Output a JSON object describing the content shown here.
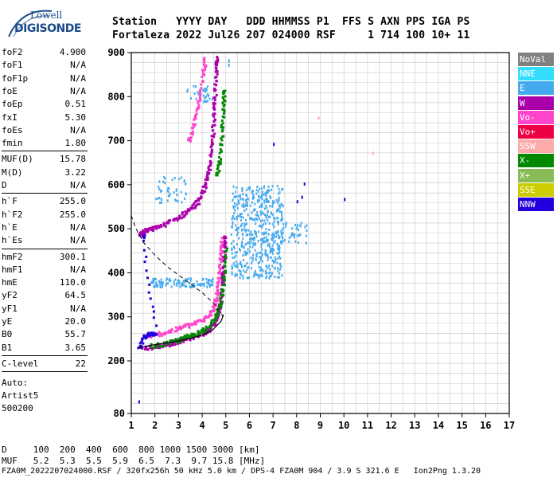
{
  "logo": {
    "line1": "Lowell",
    "line2": "DIGISONDE"
  },
  "header": {
    "line1": "Station   YYYY DAY   DDD HHMMSS P1  FFS S AXN PPS IGA PS",
    "line2": "Fortaleza 2022 Jul26 207 024000 RSF     1 714 100 10+ 11"
  },
  "params": {
    "group1": [
      {
        "label": "foF2",
        "value": "4.900"
      },
      {
        "label": "foF1",
        "value": "N/A"
      },
      {
        "label": "foF1p",
        "value": "N/A"
      },
      {
        "label": "foE",
        "value": "N/A"
      },
      {
        "label": "foEp",
        "value": "0.51"
      },
      {
        "label": "fxI",
        "value": "5.30"
      },
      {
        "label": "foEs",
        "value": "N/A"
      },
      {
        "label": "fmin",
        "value": "1.80"
      }
    ],
    "group2": [
      {
        "label": "MUF(D)",
        "value": "15.78"
      },
      {
        "label": "M(D)",
        "value": "3.22"
      },
      {
        "label": "D",
        "value": "N/A"
      }
    ],
    "group3": [
      {
        "label": "h`F",
        "value": "255.0"
      },
      {
        "label": "h`F2",
        "value": "255.0"
      },
      {
        "label": "h`E",
        "value": "N/A"
      },
      {
        "label": "h`Es",
        "value": "N/A"
      }
    ],
    "group4": [
      {
        "label": "hmF2",
        "value": "300.1"
      },
      {
        "label": "hmF1",
        "value": "N/A"
      },
      {
        "label": "hmE",
        "value": "110.0"
      },
      {
        "label": "yF2",
        "value": "64.5"
      },
      {
        "label": "yF1",
        "value": "N/A"
      },
      {
        "label": "yE",
        "value": "20.0"
      },
      {
        "label": "B0",
        "value": "55.7"
      },
      {
        "label": "B1",
        "value": "3.65"
      }
    ],
    "clevel": {
      "label": "C-level",
      "value": "22"
    },
    "auto": [
      "Auto:",
      "Artist5",
      "500200"
    ]
  },
  "legend": [
    {
      "label": "NoVal",
      "color": "#808080"
    },
    {
      "label": "NNE",
      "color": "#33ddff"
    },
    {
      "label": "E",
      "color": "#44aaee"
    },
    {
      "label": "W",
      "color": "#aa00aa"
    },
    {
      "label": "Vo-",
      "color": "#ff44cc"
    },
    {
      "label": "Vo+",
      "color": "#ee0044"
    },
    {
      "label": "SSW",
      "color": "#ffaaaa"
    },
    {
      "label": "X-",
      "color": "#008800"
    },
    {
      "label": "X+",
      "color": "#88bb55"
    },
    {
      "label": "SSE",
      "color": "#cccc00"
    },
    {
      "label": "NNW",
      "color": "#2200dd"
    }
  ],
  "footer": {
    "line1": "D     100  200  400  600  800 1000 1500 3000 [km]",
    "line2": "MUF   5.2  5.3  5.5  5.9  6.5  7.3  9.7 15.8 [MHz]",
    "line3": "FZA0M_2022207024000.RSF / 320fx256h 50 kHz 5.0 km / DPS-4 FZA0M 904 / 3.9 S 321.6 E   Ion2Png 1.3.20"
  },
  "chart_data": {
    "type": "scatter",
    "x_ticks": [
      1,
      2,
      3,
      4,
      5,
      6,
      7,
      8,
      9,
      10,
      11,
      12,
      13,
      14,
      15,
      16,
      17
    ],
    "y_ticks": [
      80,
      200,
      300,
      400,
      500,
      600,
      700,
      800,
      900
    ],
    "xlim": [
      1,
      17
    ],
    "ylim": [
      80,
      900
    ],
    "grid": true,
    "profile_dashed": [
      [
        1.0,
        530
      ],
      [
        1.2,
        500
      ],
      [
        1.5,
        470
      ],
      [
        2.0,
        440
      ],
      [
        2.5,
        415
      ],
      [
        3.0,
        395
      ],
      [
        3.5,
        375
      ],
      [
        4.0,
        355
      ],
      [
        4.5,
        330
      ],
      [
        4.9,
        300
      ]
    ],
    "profile_solid": [
      [
        1.3,
        230
      ],
      [
        2.0,
        237
      ],
      [
        3.0,
        245
      ],
      [
        3.8,
        255
      ],
      [
        4.4,
        268
      ],
      [
        4.8,
        290
      ],
      [
        4.9,
        305
      ]
    ],
    "traces": [
      {
        "color": "#aa00aa",
        "points": [
          [
            1.4,
            230
          ],
          [
            2.0,
            235
          ],
          [
            2.5,
            240
          ],
          [
            3.0,
            248
          ],
          [
            3.5,
            255
          ],
          [
            4.0,
            265
          ],
          [
            4.3,
            275
          ],
          [
            4.5,
            290
          ],
          [
            4.7,
            320
          ],
          [
            4.8,
            360
          ],
          [
            4.85,
            400
          ],
          [
            4.9,
            450
          ],
          [
            4.92,
            490
          ]
        ]
      },
      {
        "color": "#ff44cc",
        "points": [
          [
            1.6,
            258
          ],
          [
            2.0,
            262
          ],
          [
            2.5,
            268
          ],
          [
            3.0,
            276
          ],
          [
            3.5,
            285
          ],
          [
            4.0,
            295
          ],
          [
            4.3,
            310
          ],
          [
            4.5,
            330
          ],
          [
            4.6,
            360
          ],
          [
            4.7,
            400
          ],
          [
            4.75,
            440
          ],
          [
            4.8,
            480
          ]
        ]
      },
      {
        "color": "#008800",
        "points": [
          [
            1.8,
            235
          ],
          [
            2.5,
            242
          ],
          [
            3.0,
            250
          ],
          [
            3.5,
            260
          ],
          [
            4.0,
            272
          ],
          [
            4.4,
            290
          ],
          [
            4.6,
            310
          ],
          [
            4.8,
            350
          ],
          [
            4.9,
            400
          ],
          [
            5.0,
            460
          ]
        ]
      },
      {
        "color": "#2200dd",
        "points": [
          [
            1.3,
            230
          ],
          [
            1.5,
            258
          ],
          [
            1.7,
            262
          ],
          [
            2.0,
            266
          ],
          [
            1.4,
            490
          ],
          [
            1.5,
            485
          ]
        ]
      },
      {
        "color": "#aa00aa",
        "points": [
          [
            1.3,
            490
          ],
          [
            1.6,
            498
          ],
          [
            2.0,
            505
          ],
          [
            2.5,
            515
          ],
          [
            3.0,
            530
          ],
          [
            3.5,
            548
          ],
          [
            3.8,
            565
          ],
          [
            4.0,
            590
          ],
          [
            4.2,
            620
          ],
          [
            4.3,
            660
          ],
          [
            4.4,
            700
          ],
          [
            4.45,
            760
          ],
          [
            4.5,
            800
          ],
          [
            4.55,
            860
          ],
          [
            4.6,
            895
          ]
        ]
      },
      {
        "color": "#ff44cc",
        "points": [
          [
            3.4,
            700
          ],
          [
            3.6,
            740
          ],
          [
            3.8,
            790
          ],
          [
            4.0,
            850
          ],
          [
            4.1,
            890
          ]
        ]
      },
      {
        "color": "#008800",
        "points": [
          [
            4.6,
            620
          ],
          [
            4.7,
            660
          ],
          [
            4.8,
            720
          ],
          [
            4.85,
            780
          ],
          [
            4.9,
            820
          ]
        ]
      }
    ],
    "clusters": [
      {
        "color": "#44aaee",
        "x": [
          5.2,
          7.4
        ],
        "y": [
          390,
          600
        ],
        "n": 520
      },
      {
        "color": "#44aaee",
        "x": [
          1.8,
          4.5
        ],
        "y": [
          370,
          390
        ],
        "n": 110
      },
      {
        "color": "#44aaee",
        "x": [
          2.0,
          3.3
        ],
        "y": [
          560,
          620
        ],
        "n": 45
      },
      {
        "color": "#44aaee",
        "x": [
          3.2,
          4.4
        ],
        "y": [
          790,
          830
        ],
        "n": 30
      },
      {
        "color": "#44aaee",
        "x": [
          7.0,
          8.4
        ],
        "y": [
          470,
          520
        ],
        "n": 45
      }
    ],
    "isolated": [
      {
        "color": "#2200dd",
        "x": 8.3,
        "y": 605
      },
      {
        "color": "#2200dd",
        "x": 8.2,
        "y": 575
      },
      {
        "color": "#2200dd",
        "x": 8.0,
        "y": 565
      },
      {
        "color": "#2200dd",
        "x": 10.0,
        "y": 570
      },
      {
        "color": "#2200dd",
        "x": 7.0,
        "y": 695
      },
      {
        "color": "#2200dd",
        "x": 1.3,
        "y": 110
      },
      {
        "color": "#44aaee",
        "x": 5.1,
        "y": 885
      },
      {
        "color": "#44aaee",
        "x": 5.1,
        "y": 875
      },
      {
        "color": "#ffaaaa",
        "x": 11.2,
        "y": 675
      },
      {
        "color": "#ffaaaa",
        "x": 8.9,
        "y": 755
      }
    ]
  }
}
